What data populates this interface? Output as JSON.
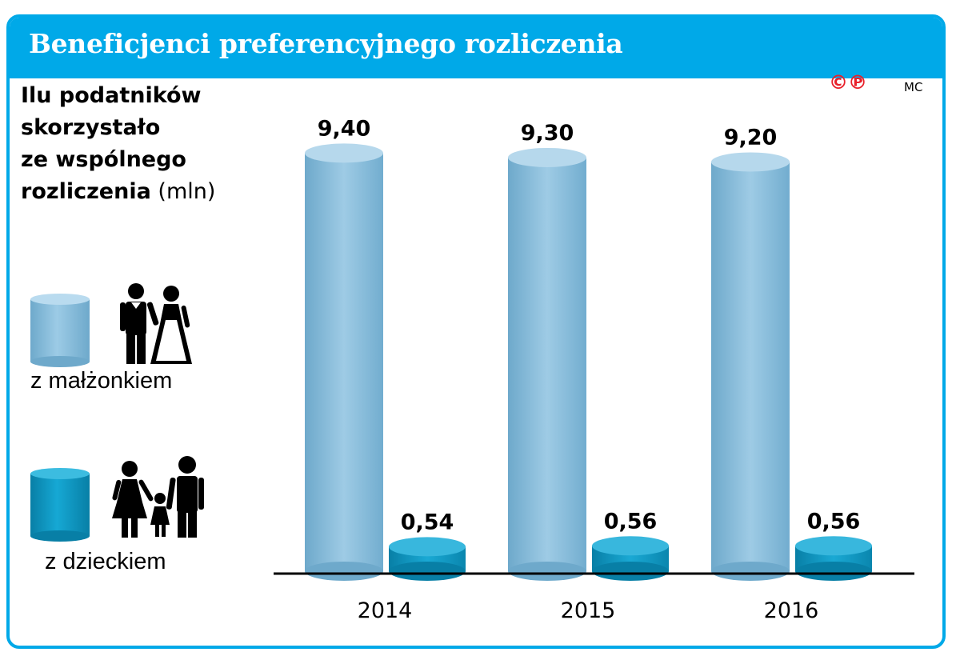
{
  "title": "Beneficjenci preferencyjnego rozliczenia",
  "description": {
    "lines": [
      "Ilu podatników",
      "skorzystało",
      "ze wspólnego",
      "rozliczenia"
    ],
    "unit": "(mln)"
  },
  "logo": "©℗",
  "source": "MC",
  "legend": [
    {
      "label": "z małżonkiem",
      "icon": "married-couple-icon",
      "color": "#8fc1de"
    },
    {
      "label": "z dzieckiem",
      "icon": "family-icon",
      "color": "#0d9dc9"
    }
  ],
  "chart_data": {
    "type": "bar",
    "categories": [
      "2014",
      "2015",
      "2016"
    ],
    "series": [
      {
        "name": "z małżonkiem",
        "values": [
          9.4,
          9.3,
          9.2
        ],
        "labels": [
          "9,40",
          "9,30",
          "9,20"
        ]
      },
      {
        "name": "z dzieckiem",
        "values": [
          0.54,
          0.56,
          0.56
        ],
        "labels": [
          "0,54",
          "0,56",
          "0,56"
        ]
      }
    ],
    "title": "Beneficjenci preferencyjnego rozliczenia",
    "ylabel": "Ilu podatników skorzystało ze wspólnego rozliczenia (mln)",
    "ylim": [
      0,
      9.4
    ],
    "grid": false,
    "legend_position": "left"
  }
}
